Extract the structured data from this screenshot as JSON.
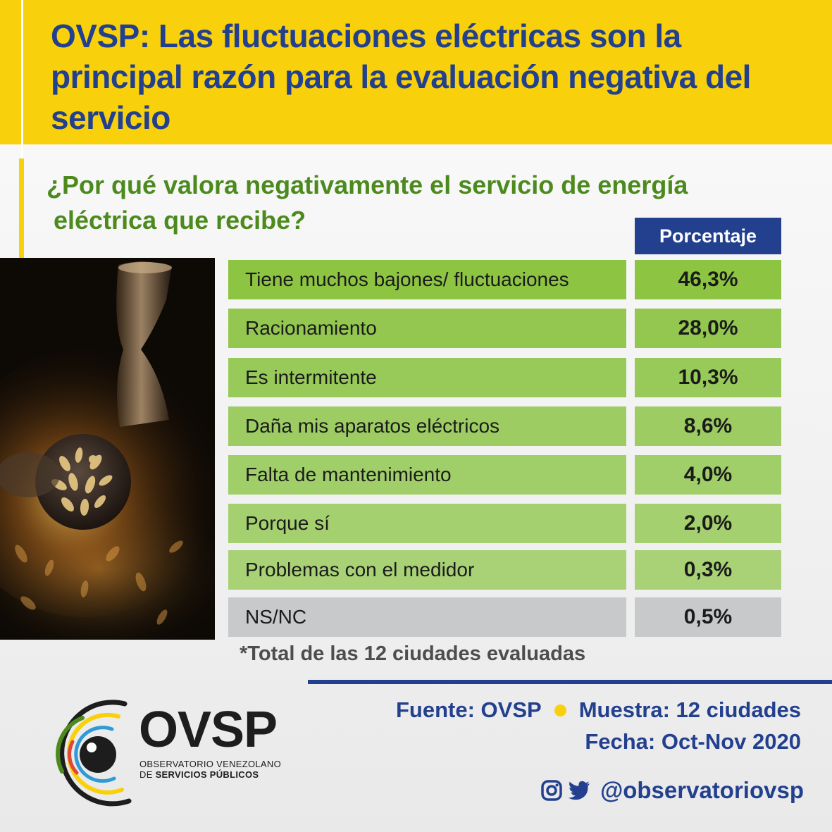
{
  "header": {
    "title": "OVSP: Las fluctuaciones eléctricas son la principal razón para la evaluación negativa del servicio",
    "background_color": "#f8d10c",
    "title_color": "#23408e"
  },
  "question": {
    "line1": "¿Por qué valora negativamente el servicio de energía",
    "line2": "eléctrica que recibe?",
    "color": "#4c8a1d"
  },
  "table": {
    "column_header": "Porcentaje",
    "header_color": "#23408e"
  },
  "chart_data": {
    "type": "table",
    "title": "¿Por qué valora negativamente el servicio de energía eléctrica que recibe?",
    "column_header": "Porcentaje",
    "rows": [
      {
        "label": "Tiene muchos bajones/ fluctuaciones",
        "value": 46.3,
        "display": "46,3%",
        "color": "#8dc542"
      },
      {
        "label": "Racionamiento",
        "value": 28.0,
        "display": "28,0%",
        "color": "#93c74f"
      },
      {
        "label": "Es intermitente",
        "value": 10.3,
        "display": "10,3%",
        "color": "#98ca5a"
      },
      {
        "label": "Daña mis aparatos eléctricos",
        "value": 8.6,
        "display": "8,6%",
        "color": "#9ccc62"
      },
      {
        "label": "Falta de mantenimiento",
        "value": 4.0,
        "display": "4,0%",
        "color": "#a0ce69"
      },
      {
        "label": "Porque sí",
        "value": 2.0,
        "display": "2,0%",
        "color": "#a4d06f"
      },
      {
        "label": "Problemas con el medidor",
        "value": 0.3,
        "display": "0,3%",
        "color": "#a8d275"
      },
      {
        "label": "NS/NC",
        "value": 0.5,
        "display": "0,5%",
        "color": "#c8c9cb"
      }
    ]
  },
  "footnote": "*Total de las 12 ciudades evaluadas",
  "logo": {
    "name": "OVSP",
    "line1": "OBSERVATORIO VENEZOLANO",
    "line2_prefix": "DE ",
    "line2_bold": "SERVICIOS PÚBLICOS"
  },
  "footer": {
    "source": "Fuente: OVSP",
    "sample": "Muestra: 12 ciudades",
    "date": "Fecha: Oct-Nov 2020",
    "handle": "@observatoriovsp",
    "color": "#23408e"
  },
  "icons": {
    "instagram": "instagram-icon",
    "twitter": "twitter-icon",
    "photo": "lantern-photo"
  }
}
